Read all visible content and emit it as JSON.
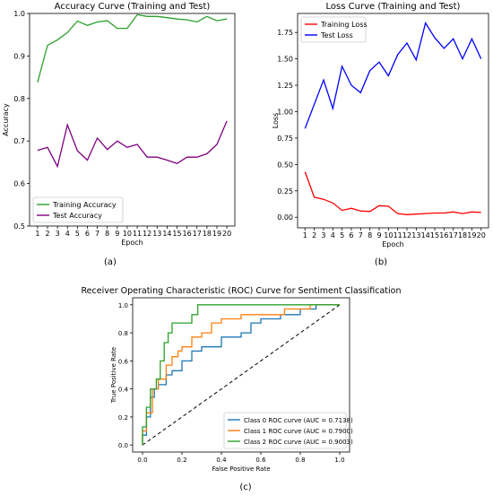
{
  "panel_labels": [
    "(a)",
    "(b)",
    "(c)"
  ],
  "colors": {
    "train_acc": "#2ca02c",
    "test_acc": "#800080",
    "train_loss": "#ff0000",
    "test_loss": "#0000ff",
    "roc0": "#1f77b4",
    "roc1": "#ff7f0e",
    "roc2": "#2ca02c"
  },
  "chart_data": [
    {
      "type": "line",
      "title": "Accuracy Curve (Training and Test)",
      "xlabel": "Epoch",
      "ylabel": "Accuracy",
      "x": [
        1,
        2,
        3,
        4,
        5,
        6,
        7,
        8,
        9,
        10,
        11,
        12,
        13,
        14,
        15,
        16,
        17,
        18,
        19,
        20
      ],
      "xlim": [
        0.2,
        20.8
      ],
      "ylim": [
        0.5,
        1.0
      ],
      "yticks": [
        0.5,
        0.6,
        0.7,
        0.8,
        0.9,
        1.0
      ],
      "series": [
        {
          "name": "Training Accuracy",
          "values": [
            0.838,
            0.925,
            0.938,
            0.955,
            0.982,
            0.972,
            0.98,
            0.983,
            0.965,
            0.965,
            0.997,
            0.993,
            0.993,
            0.99,
            0.987,
            0.985,
            0.98,
            0.993,
            0.983,
            0.987
          ]
        },
        {
          "name": "Test Accuracy",
          "values": [
            0.678,
            0.685,
            0.64,
            0.738,
            0.677,
            0.655,
            0.707,
            0.68,
            0.7,
            0.685,
            0.692,
            0.662,
            0.662,
            0.655,
            0.647,
            0.662,
            0.662,
            0.67,
            0.692,
            0.747
          ]
        }
      ],
      "legend": "lower-left",
      "grid": false
    },
    {
      "type": "line",
      "title": "Loss Curve (Training and Test)",
      "xlabel": "Epoch",
      "ylabel": "Loss",
      "x": [
        1,
        2,
        3,
        4,
        5,
        6,
        7,
        8,
        9,
        10,
        11,
        12,
        13,
        14,
        15,
        16,
        17,
        18,
        19,
        20
      ],
      "xlim": [
        0.2,
        20.8
      ],
      "ylim": [
        -0.1,
        1.93
      ],
      "yticks": [
        0.0,
        0.25,
        0.5,
        0.75,
        1.0,
        1.25,
        1.5,
        1.75
      ],
      "series": [
        {
          "name": "Training Loss",
          "values": [
            0.43,
            0.19,
            0.17,
            0.135,
            0.065,
            0.085,
            0.06,
            0.055,
            0.11,
            0.105,
            0.035,
            0.025,
            0.03,
            0.035,
            0.04,
            0.04,
            0.05,
            0.035,
            0.05,
            0.045
          ]
        },
        {
          "name": "Test Loss",
          "values": [
            0.84,
            1.07,
            1.3,
            1.03,
            1.43,
            1.25,
            1.18,
            1.39,
            1.47,
            1.34,
            1.54,
            1.65,
            1.49,
            1.84,
            1.7,
            1.6,
            1.69,
            1.5,
            1.69,
            1.5
          ]
        }
      ],
      "legend": "top-left",
      "grid": false
    },
    {
      "type": "line",
      "title": "Receiver Operating Characteristic (ROC) Curve for Sentiment Classification",
      "xlabel": "False Positive Rate",
      "ylabel": "True Positive Rate",
      "xlim": [
        -0.05,
        1.05
      ],
      "ylim": [
        -0.05,
        1.05
      ],
      "xticks": [
        0.0,
        0.2,
        0.4,
        0.6,
        0.8,
        1.0
      ],
      "yticks": [
        0.0,
        0.2,
        0.4,
        0.6,
        0.8,
        1.0
      ],
      "series": [
        {
          "name": "Class 0 ROC curve (AUC = 0.7138)",
          "points": [
            [
              0,
              0
            ],
            [
              0,
              0.07
            ],
            [
              0.02,
              0.07
            ],
            [
              0.02,
              0.2
            ],
            [
              0.04,
              0.2
            ],
            [
              0.04,
              0.34
            ],
            [
              0.06,
              0.34
            ],
            [
              0.06,
              0.4
            ],
            [
              0.08,
              0.4
            ],
            [
              0.08,
              0.43
            ],
            [
              0.12,
              0.43
            ],
            [
              0.12,
              0.5
            ],
            [
              0.15,
              0.5
            ],
            [
              0.15,
              0.53
            ],
            [
              0.2,
              0.53
            ],
            [
              0.2,
              0.6
            ],
            [
              0.25,
              0.6
            ],
            [
              0.25,
              0.67
            ],
            [
              0.3,
              0.67
            ],
            [
              0.3,
              0.7
            ],
            [
              0.4,
              0.7
            ],
            [
              0.4,
              0.77
            ],
            [
              0.5,
              0.77
            ],
            [
              0.5,
              0.8
            ],
            [
              0.55,
              0.8
            ],
            [
              0.55,
              0.87
            ],
            [
              0.6,
              0.87
            ],
            [
              0.6,
              0.9
            ],
            [
              0.7,
              0.9
            ],
            [
              0.7,
              0.93
            ],
            [
              0.8,
              0.93
            ],
            [
              0.8,
              0.97
            ],
            [
              0.88,
              0.97
            ],
            [
              0.88,
              1.0
            ],
            [
              1.0,
              1.0
            ]
          ]
        },
        {
          "name": "Class 1 ROC curve (AUC = 0.7900)",
          "points": [
            [
              0,
              0
            ],
            [
              0,
              0.1
            ],
            [
              0.02,
              0.1
            ],
            [
              0.02,
              0.23
            ],
            [
              0.05,
              0.23
            ],
            [
              0.05,
              0.4
            ],
            [
              0.08,
              0.4
            ],
            [
              0.08,
              0.47
            ],
            [
              0.12,
              0.47
            ],
            [
              0.12,
              0.57
            ],
            [
              0.15,
              0.57
            ],
            [
              0.15,
              0.63
            ],
            [
              0.18,
              0.63
            ],
            [
              0.18,
              0.67
            ],
            [
              0.2,
              0.67
            ],
            [
              0.2,
              0.7
            ],
            [
              0.25,
              0.7
            ],
            [
              0.25,
              0.77
            ],
            [
              0.3,
              0.77
            ],
            [
              0.3,
              0.8
            ],
            [
              0.35,
              0.8
            ],
            [
              0.35,
              0.87
            ],
            [
              0.4,
              0.87
            ],
            [
              0.4,
              0.9
            ],
            [
              0.5,
              0.9
            ],
            [
              0.5,
              0.93
            ],
            [
              0.72,
              0.93
            ],
            [
              0.72,
              0.97
            ],
            [
              0.85,
              0.97
            ],
            [
              0.85,
              1.0
            ],
            [
              1.0,
              1.0
            ]
          ]
        },
        {
          "name": "Class 2 ROC curve (AUC = 0.9003)",
          "points": [
            [
              0,
              0
            ],
            [
              0,
              0.13
            ],
            [
              0.02,
              0.13
            ],
            [
              0.02,
              0.27
            ],
            [
              0.04,
              0.27
            ],
            [
              0.04,
              0.4
            ],
            [
              0.07,
              0.4
            ],
            [
              0.07,
              0.47
            ],
            [
              0.09,
              0.47
            ],
            [
              0.09,
              0.6
            ],
            [
              0.11,
              0.6
            ],
            [
              0.11,
              0.73
            ],
            [
              0.13,
              0.73
            ],
            [
              0.13,
              0.8
            ],
            [
              0.15,
              0.8
            ],
            [
              0.15,
              0.87
            ],
            [
              0.25,
              0.87
            ],
            [
              0.25,
              0.93
            ],
            [
              0.28,
              0.93
            ],
            [
              0.28,
              1.0
            ],
            [
              1.0,
              1.0
            ]
          ]
        }
      ],
      "diagonal": true,
      "legend": "lower-right",
      "grid": false
    }
  ]
}
